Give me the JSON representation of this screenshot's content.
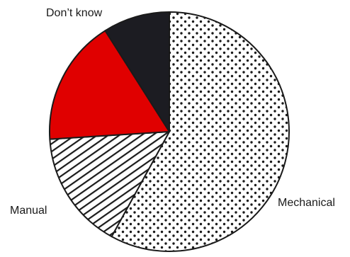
{
  "chart_data": {
    "type": "pie",
    "title": "",
    "start": "12 o'clock",
    "direction": "clockwise",
    "unit": "percent",
    "slices": [
      {
        "label": "Mechanical",
        "value": 58,
        "fill": "dotted",
        "color": "#1a1a1a"
      },
      {
        "label": "Manual",
        "value": 16,
        "fill": "diagonal-hatch",
        "color": "#1a1a1a"
      },
      {
        "label": "",
        "value": 17,
        "fill": "solid",
        "color": "#e00000"
      },
      {
        "label": "Don’t know",
        "value": 9,
        "fill": "solid",
        "color": "#1c1c22"
      }
    ]
  }
}
